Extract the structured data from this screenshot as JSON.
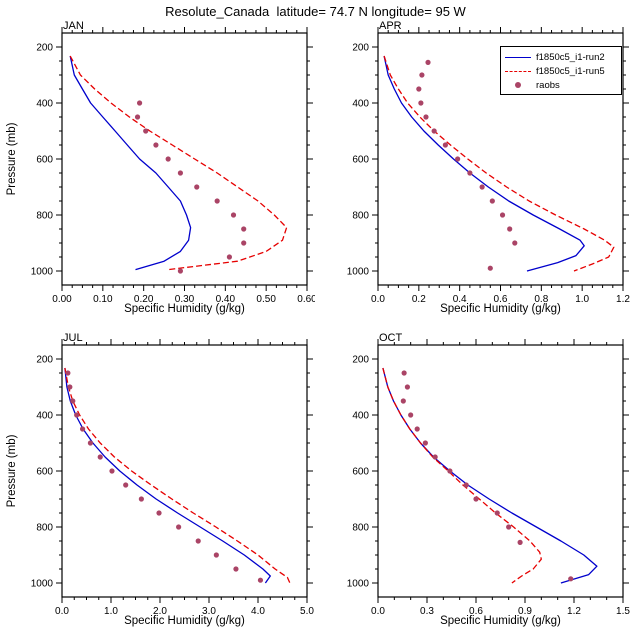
{
  "title": "Resolute_Canada  latitude= 74.7 N longitude= 95 W",
  "colors": {
    "run2": "#0000cc",
    "run5": "#e60000",
    "raobs": "#aa4466",
    "axis": "#000000"
  },
  "legend": {
    "entries": [
      {
        "label": "f1850c5_i1-run2",
        "type": "line-solid",
        "color_key": "run2"
      },
      {
        "label": "f1850c5_i1-run5",
        "type": "line-dashed",
        "color_key": "run5"
      },
      {
        "label": "raobs",
        "type": "marker",
        "color_key": "raobs"
      }
    ]
  },
  "pressure_axis": {
    "label": "Pressure (mb)",
    "domain": [
      150,
      1050
    ],
    "major": [
      200,
      400,
      600,
      800,
      1000
    ],
    "major_labels": [
      "200",
      "400",
      "600",
      "800",
      "1000"
    ],
    "minor_step": 50
  },
  "chart_data": [
    {
      "type": "line",
      "panel_label": "JAN",
      "xlabel": "Specific Humidity (g/kg)",
      "ylabel": "Pressure (mb)",
      "xlim": [
        0,
        0.6
      ],
      "x_major": [
        0,
        0.1,
        0.2,
        0.3,
        0.4,
        0.5,
        0.6
      ],
      "x_major_labels": [
        "0.00",
        "0.10",
        "0.20",
        "0.30",
        "0.40",
        "0.50",
        "0.60"
      ],
      "x_minor_step": 0.025,
      "series": [
        {
          "name": "f1850c5_i1-run2",
          "style": "solid",
          "color_key": "run2",
          "points": [
            [
              0.02,
              232
            ],
            [
              0.03,
              300
            ],
            [
              0.05,
              350
            ],
            [
              0.07,
              400
            ],
            [
              0.1,
              450
            ],
            [
              0.13,
              500
            ],
            [
              0.16,
              550
            ],
            [
              0.19,
              600
            ],
            [
              0.23,
              650
            ],
            [
              0.26,
              700
            ],
            [
              0.29,
              750
            ],
            [
              0.305,
              800
            ],
            [
              0.315,
              845
            ],
            [
              0.31,
              890
            ],
            [
              0.29,
              930
            ],
            [
              0.25,
              965
            ],
            [
              0.18,
              995
            ]
          ]
        },
        {
          "name": "f1850c5_i1-run5",
          "style": "dashed",
          "color_key": "run5",
          "points": [
            [
              0.02,
              232
            ],
            [
              0.045,
              300
            ],
            [
              0.08,
              350
            ],
            [
              0.12,
              400
            ],
            [
              0.165,
              450
            ],
            [
              0.215,
              500
            ],
            [
              0.27,
              550
            ],
            [
              0.325,
              600
            ],
            [
              0.38,
              650
            ],
            [
              0.43,
              700
            ],
            [
              0.48,
              750
            ],
            [
              0.52,
              800
            ],
            [
              0.55,
              845
            ],
            [
              0.54,
              890
            ],
            [
              0.5,
              930
            ],
            [
              0.43,
              965
            ],
            [
              0.26,
              995
            ]
          ]
        },
        {
          "name": "raobs",
          "style": "markers",
          "color_key": "raobs",
          "points": [
            [
              0.19,
              400
            ],
            [
              0.185,
              450
            ],
            [
              0.205,
              500
            ],
            [
              0.23,
              550
            ],
            [
              0.26,
              600
            ],
            [
              0.29,
              650
            ],
            [
              0.33,
              700
            ],
            [
              0.38,
              750
            ],
            [
              0.42,
              800
            ],
            [
              0.445,
              850
            ],
            [
              0.445,
              900
            ],
            [
              0.41,
              950
            ],
            [
              0.29,
              1000
            ]
          ]
        }
      ]
    },
    {
      "type": "line",
      "panel_label": "APR",
      "xlabel": "Specific Humidity (g/kg)",
      "xlim": [
        0,
        1.2
      ],
      "x_major": [
        0,
        0.2,
        0.4,
        0.6,
        0.8,
        1.0,
        1.2
      ],
      "x_major_labels": [
        "0.0",
        "0.2",
        "0.4",
        "0.6",
        "0.8",
        "1.0",
        "1.2"
      ],
      "x_minor_step": 0.05,
      "has_legend": true,
      "series": [
        {
          "name": "f1850c5_i1-run2",
          "style": "solid",
          "color_key": "run2",
          "points": [
            [
              0.03,
              232
            ],
            [
              0.05,
              300
            ],
            [
              0.08,
              350
            ],
            [
              0.115,
              400
            ],
            [
              0.165,
              450
            ],
            [
              0.225,
              500
            ],
            [
              0.295,
              550
            ],
            [
              0.37,
              600
            ],
            [
              0.45,
              650
            ],
            [
              0.54,
              700
            ],
            [
              0.64,
              750
            ],
            [
              0.76,
              800
            ],
            [
              0.89,
              850
            ],
            [
              0.99,
              890
            ],
            [
              1.01,
              910
            ],
            [
              0.97,
              945
            ],
            [
              0.88,
              970
            ],
            [
              0.73,
              1000
            ]
          ]
        },
        {
          "name": "f1850c5_i1-run5",
          "style": "dashed",
          "color_key": "run5",
          "points": [
            [
              0.03,
              232
            ],
            [
              0.06,
              300
            ],
            [
              0.1,
              350
            ],
            [
              0.145,
              400
            ],
            [
              0.205,
              450
            ],
            [
              0.275,
              500
            ],
            [
              0.355,
              550
            ],
            [
              0.44,
              600
            ],
            [
              0.53,
              650
            ],
            [
              0.63,
              700
            ],
            [
              0.74,
              750
            ],
            [
              0.87,
              800
            ],
            [
              1.01,
              850
            ],
            [
              1.11,
              890
            ],
            [
              1.155,
              915
            ],
            [
              1.13,
              950
            ],
            [
              1.05,
              975
            ],
            [
              0.96,
              1000
            ]
          ]
        },
        {
          "name": "raobs",
          "style": "markers",
          "color_key": "raobs",
          "points": [
            [
              0.245,
              255
            ],
            [
              0.215,
              300
            ],
            [
              0.2,
              350
            ],
            [
              0.21,
              400
            ],
            [
              0.235,
              450
            ],
            [
              0.275,
              500
            ],
            [
              0.33,
              550
            ],
            [
              0.39,
              600
            ],
            [
              0.45,
              650
            ],
            [
              0.51,
              700
            ],
            [
              0.56,
              750
            ],
            [
              0.61,
              800
            ],
            [
              0.645,
              850
            ],
            [
              0.67,
              900
            ],
            [
              0.55,
              990
            ]
          ]
        }
      ]
    },
    {
      "type": "line",
      "panel_label": "JUL",
      "xlabel": "Specific Humidity (g/kg)",
      "ylabel": "Pressure (mb)",
      "xlim": [
        0,
        5.0
      ],
      "x_major": [
        0,
        1.0,
        2.0,
        3.0,
        4.0,
        5.0
      ],
      "x_major_labels": [
        "0.0",
        "1.0",
        "2.0",
        "3.0",
        "4.0",
        "5.0"
      ],
      "x_minor_step": 0.25,
      "series": [
        {
          "name": "f1850c5_i1-run2",
          "style": "solid",
          "color_key": "run2",
          "points": [
            [
              0.06,
              232
            ],
            [
              0.1,
              300
            ],
            [
              0.17,
              350
            ],
            [
              0.28,
              400
            ],
            [
              0.43,
              450
            ],
            [
              0.63,
              500
            ],
            [
              0.88,
              550
            ],
            [
              1.18,
              600
            ],
            [
              1.53,
              650
            ],
            [
              1.92,
              700
            ],
            [
              2.36,
              750
            ],
            [
              2.82,
              800
            ],
            [
              3.28,
              850
            ],
            [
              3.72,
              900
            ],
            [
              4.1,
              950
            ],
            [
              4.25,
              975
            ],
            [
              4.15,
              1000
            ]
          ]
        },
        {
          "name": "f1850c5_i1-run5",
          "style": "dashed",
          "color_key": "run5",
          "points": [
            [
              0.06,
              232
            ],
            [
              0.13,
              300
            ],
            [
              0.22,
              350
            ],
            [
              0.36,
              400
            ],
            [
              0.54,
              450
            ],
            [
              0.78,
              500
            ],
            [
              1.07,
              550
            ],
            [
              1.42,
              600
            ],
            [
              1.82,
              650
            ],
            [
              2.24,
              700
            ],
            [
              2.68,
              750
            ],
            [
              3.14,
              800
            ],
            [
              3.58,
              850
            ],
            [
              4.0,
              900
            ],
            [
              4.35,
              950
            ],
            [
              4.6,
              980
            ],
            [
              4.65,
              1000
            ]
          ]
        },
        {
          "name": "raobs",
          "style": "markers",
          "color_key": "raobs",
          "points": [
            [
              0.12,
              250
            ],
            [
              0.16,
              300
            ],
            [
              0.22,
              350
            ],
            [
              0.3,
              400
            ],
            [
              0.42,
              450
            ],
            [
              0.58,
              500
            ],
            [
              0.78,
              550
            ],
            [
              1.02,
              600
            ],
            [
              1.3,
              650
            ],
            [
              1.62,
              700
            ],
            [
              1.98,
              750
            ],
            [
              2.38,
              800
            ],
            [
              2.78,
              850
            ],
            [
              3.15,
              900
            ],
            [
              3.55,
              950
            ],
            [
              4.05,
              990
            ]
          ]
        }
      ]
    },
    {
      "type": "line",
      "panel_label": "OCT",
      "xlabel": "Specific Humidity (g/kg)",
      "xlim": [
        0,
        1.5
      ],
      "x_major": [
        0,
        0.3,
        0.6,
        0.9,
        1.2,
        1.5
      ],
      "x_major_labels": [
        "0.0",
        "0.3",
        "0.6",
        "0.9",
        "1.2",
        "1.5"
      ],
      "x_minor_step": 0.1,
      "series": [
        {
          "name": "f1850c5_i1-run2",
          "style": "solid",
          "color_key": "run2",
          "points": [
            [
              0.03,
              232
            ],
            [
              0.06,
              300
            ],
            [
              0.095,
              350
            ],
            [
              0.14,
              400
            ],
            [
              0.195,
              450
            ],
            [
              0.26,
              500
            ],
            [
              0.34,
              550
            ],
            [
              0.44,
              600
            ],
            [
              0.55,
              650
            ],
            [
              0.68,
              700
            ],
            [
              0.82,
              750
            ],
            [
              0.97,
              800
            ],
            [
              1.12,
              850
            ],
            [
              1.26,
              900
            ],
            [
              1.34,
              940
            ],
            [
              1.29,
              970
            ],
            [
              1.12,
              1000
            ]
          ]
        },
        {
          "name": "f1850c5_i1-run5",
          "style": "dashed",
          "color_key": "run5",
          "points": [
            [
              0.03,
              232
            ],
            [
              0.06,
              300
            ],
            [
              0.095,
              350
            ],
            [
              0.14,
              400
            ],
            [
              0.195,
              450
            ],
            [
              0.26,
              500
            ],
            [
              0.335,
              550
            ],
            [
              0.43,
              600
            ],
            [
              0.52,
              650
            ],
            [
              0.62,
              700
            ],
            [
              0.72,
              750
            ],
            [
              0.83,
              800
            ],
            [
              0.93,
              850
            ],
            [
              0.99,
              890
            ],
            [
              1.0,
              915
            ],
            [
              0.95,
              950
            ],
            [
              0.88,
              975
            ],
            [
              0.82,
              1000
            ]
          ]
        },
        {
          "name": "raobs",
          "style": "markers",
          "color_key": "raobs",
          "points": [
            [
              0.16,
              250
            ],
            [
              0.18,
              300
            ],
            [
              0.155,
              350
            ],
            [
              0.2,
              400
            ],
            [
              0.24,
              450
            ],
            [
              0.29,
              500
            ],
            [
              0.35,
              550
            ],
            [
              0.44,
              600
            ],
            [
              0.54,
              650
            ],
            [
              0.6,
              700
            ],
            [
              0.73,
              750
            ],
            [
              0.8,
              800
            ],
            [
              0.87,
              855
            ],
            [
              1.18,
              985
            ]
          ]
        }
      ]
    }
  ]
}
